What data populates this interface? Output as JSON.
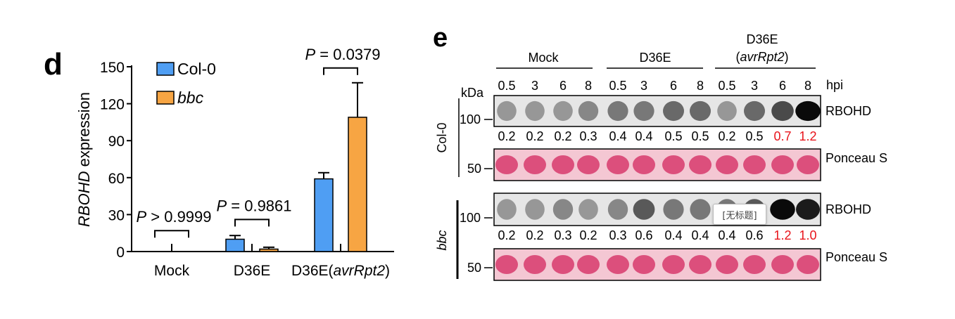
{
  "panel_d": {
    "letter": "d",
    "legend": [
      {
        "label": "Col-0",
        "color": "#4f9ef3"
      },
      {
        "label": "bbc",
        "color": "#f7a543"
      }
    ]
  },
  "panel_e": {
    "letter": "e",
    "groups": [
      {
        "label": "Mock"
      },
      {
        "label": "D36E"
      },
      {
        "label": "D36E",
        "sub": "(avrRpt2)"
      }
    ],
    "timepoints": [
      "0.5",
      "3",
      "6",
      "8",
      "0.5",
      "3",
      "6",
      "8",
      "0.5",
      "3",
      "6",
      "8"
    ],
    "hpi_label": "hpi",
    "kda_label": "kDa",
    "genotypes": [
      "Col-0",
      "bbc"
    ],
    "mw_rbohd": "100",
    "mw_ponceau": "50",
    "rbohd_label": "RBOHD",
    "ponceau_label": "Ponceau S",
    "col0_values": [
      "0.2",
      "0.2",
      "0.2",
      "0.3",
      "0.4",
      "0.4",
      "0.5",
      "0.5",
      "0.2",
      "0.5",
      "0.7",
      "1.2"
    ],
    "bbc_values": [
      "0.2",
      "0.2",
      "0.3",
      "0.2",
      "0.3",
      "0.6",
      "0.4",
      "0.4",
      "0.4",
      "0.6",
      "1.2",
      "1.0"
    ],
    "col0_red": [
      false,
      false,
      false,
      false,
      false,
      false,
      false,
      false,
      false,
      false,
      true,
      true
    ],
    "bbc_red": [
      false,
      false,
      false,
      false,
      false,
      false,
      false,
      false,
      false,
      false,
      true,
      true
    ],
    "col0_intensity": [
      0.2,
      0.2,
      0.2,
      0.3,
      0.4,
      0.4,
      0.5,
      0.5,
      0.2,
      0.5,
      0.7,
      1.2
    ],
    "bbc_intensity": [
      0.2,
      0.2,
      0.3,
      0.2,
      0.3,
      0.6,
      0.4,
      0.4,
      0.4,
      0.6,
      1.2,
      1.0
    ],
    "tooltip": "[无标题]"
  },
  "chart_data": {
    "type": "bar",
    "ylabel_italic": "RBOHD",
    "ylabel_rest": " expression",
    "xlabel": "",
    "ylim": [
      0,
      150
    ],
    "yticks": [
      0,
      30,
      60,
      90,
      120,
      150
    ],
    "categories": [
      {
        "label": "Mock"
      },
      {
        "label": "D36E"
      },
      {
        "label": "D36E",
        "sub": "(avrRpt2)"
      }
    ],
    "series": [
      {
        "name": "Col-0",
        "color": "#4f9ef3",
        "values": [
          0,
          10,
          59
        ],
        "errors": [
          0,
          3,
          5
        ]
      },
      {
        "name": "bbc",
        "color": "#f7a543",
        "values": [
          0,
          2,
          109
        ],
        "errors": [
          0,
          1.5,
          28
        ]
      }
    ],
    "annotations": [
      {
        "text": "P > 0.9999",
        "category": 0,
        "y": 17
      },
      {
        "text": "P = 0.9861",
        "category": 1,
        "y": 26
      },
      {
        "text": "P = 0.0379",
        "category": 2,
        "y": 149
      }
    ],
    "grid": false,
    "legend_position": "top-left"
  }
}
